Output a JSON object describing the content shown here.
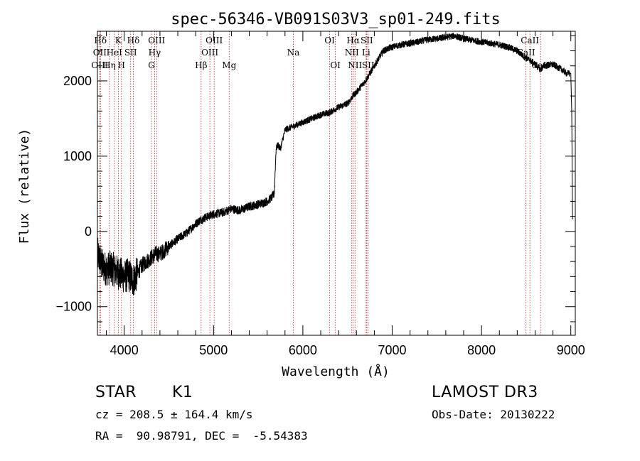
{
  "chart_data": {
    "type": "line",
    "title": "spec-56346-VB091S03V3_sp01-249.fits",
    "xlabel": "Wavelength (Å)",
    "ylabel": "Flux (relative)",
    "xlim": [
      3700,
      9050
    ],
    "ylim": [
      -1380,
      2660
    ],
    "x_ticks": [
      4000,
      5000,
      6000,
      7000,
      8000,
      9000
    ],
    "x_tick_labels": [
      "4000",
      "5000",
      "6000",
      "7000",
      "8000",
      "9000"
    ],
    "y_ticks": [
      -1000,
      0,
      1000,
      2000
    ],
    "y_tick_labels": [
      "−1000",
      "0",
      "1000",
      "2000"
    ],
    "series": [
      {
        "name": "flux",
        "x": [
          3700,
          3750,
          3800,
          3850,
          3900,
          3950,
          4000,
          4050,
          4100,
          4150,
          4200,
          4250,
          4300,
          4350,
          4400,
          4500,
          4600,
          4700,
          4800,
          4850,
          4900,
          5000,
          5100,
          5200,
          5300,
          5400,
          5500,
          5600,
          5650,
          5680,
          5700,
          5720,
          5750,
          5800,
          5900,
          6000,
          6100,
          6200,
          6300,
          6400,
          6500,
          6560,
          6600,
          6700,
          6800,
          6900,
          7000,
          7100,
          7200,
          7300,
          7400,
          7500,
          7600,
          7700,
          7800,
          7900,
          8000,
          8100,
          8200,
          8300,
          8400,
          8500,
          8540,
          8600,
          8660,
          8700,
          8800,
          8900,
          8950,
          9000,
          9010,
          9020
        ],
        "y": [
          -300,
          -450,
          -500,
          -480,
          -520,
          -560,
          -600,
          -580,
          -650,
          -550,
          -450,
          -400,
          -350,
          -300,
          -300,
          -200,
          -100,
          -20,
          100,
          150,
          180,
          230,
          250,
          300,
          280,
          330,
          360,
          400,
          450,
          500,
          1100,
          1150,
          1100,
          1350,
          1400,
          1450,
          1500,
          1550,
          1580,
          1650,
          1700,
          1800,
          1850,
          2000,
          2200,
          2400,
          2450,
          2480,
          2500,
          2520,
          2550,
          2560,
          2580,
          2600,
          2560,
          2540,
          2520,
          2500,
          2480,
          2450,
          2400,
          2300,
          2280,
          2220,
          2150,
          2200,
          2220,
          2150,
          2100,
          2100,
          1600,
          0
        ]
      }
    ],
    "spectral_lines": [
      {
        "label": "Hδ",
        "wavelength": 3734,
        "row": 0
      },
      {
        "label": "K",
        "wavelength": 3934,
        "row": 0
      },
      {
        "label": "Hδ",
        "wavelength": 4102,
        "row": 0
      },
      {
        "label": "OIII",
        "wavelength": 4363,
        "row": 0
      },
      {
        "label": "OIII",
        "wavelength": 5007,
        "row": 0
      },
      {
        "label": "OI",
        "wavelength": 6300,
        "row": 0
      },
      {
        "label": "Hα",
        "wavelength": 6563,
        "row": 0
      },
      {
        "label": "SII",
        "wavelength": 6716,
        "row": 0
      },
      {
        "label": "CaII",
        "wavelength": 8542,
        "row": 0
      },
      {
        "label": "OII",
        "wavelength": 3727,
        "row": 1
      },
      {
        "label": "HeI",
        "wavelength": 3889,
        "row": 1
      },
      {
        "label": "SII",
        "wavelength": 4072,
        "row": 1
      },
      {
        "label": "Hγ",
        "wavelength": 4340,
        "row": 1
      },
      {
        "label": "OIII",
        "wavelength": 4959,
        "row": 1
      },
      {
        "label": "Na",
        "wavelength": 5893,
        "row": 1
      },
      {
        "label": "NII",
        "wavelength": 6548,
        "row": 1
      },
      {
        "label": "Li",
        "wavelength": 6708,
        "row": 1
      },
      {
        "label": "CaII",
        "wavelength": 8498,
        "row": 1
      },
      {
        "label": "OIII",
        "wavelength": 3727,
        "row": 2
      },
      {
        "label": "Hη",
        "wavelength": 3835,
        "row": 2
      },
      {
        "label": "H",
        "wavelength": 3969,
        "row": 2
      },
      {
        "label": "G",
        "wavelength": 4305,
        "row": 2
      },
      {
        "label": "Hβ",
        "wavelength": 4861,
        "row": 2
      },
      {
        "label": "Mg",
        "wavelength": 5175,
        "row": 2
      },
      {
        "label": "OI",
        "wavelength": 6364,
        "row": 2
      },
      {
        "label": "NII",
        "wavelength": 6584,
        "row": 2
      },
      {
        "label": "SII",
        "wavelength": 6731,
        "row": 2
      },
      {
        "label": "CaII",
        "wavelength": 8662,
        "row": 2
      }
    ]
  },
  "info": {
    "class_label": "STAR",
    "subclass": "K1",
    "survey": "LAMOST DR3",
    "cz": "cz = 208.5 ± 164.4 km/s",
    "obs_date": "Obs-Date: 20130222",
    "radec": "RA =  90.98791, DEC =  -5.54383"
  },
  "colors": {
    "line_marker": "#b22222",
    "spectrum": "#000000",
    "axes": "#000000"
  }
}
